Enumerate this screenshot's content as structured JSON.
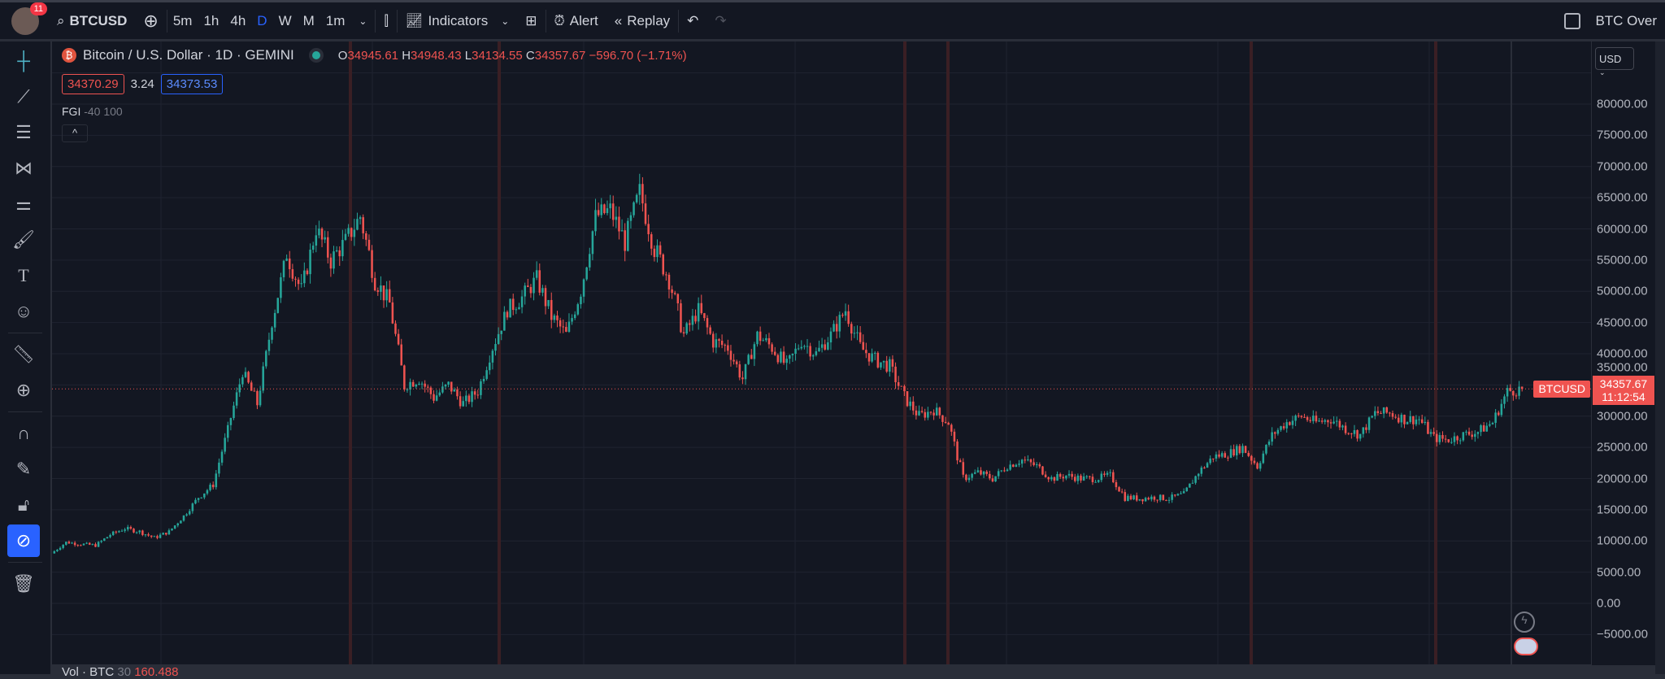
{
  "toolbar": {
    "notifications": "11",
    "symbol": "BTCUSD",
    "intervals": [
      "5m",
      "1h",
      "4h",
      "D",
      "W",
      "M",
      "1m"
    ],
    "active_interval": "D",
    "indicators": "Indicators",
    "alert": "Alert",
    "replay": "Replay",
    "right_label": "BTC Over"
  },
  "legend": {
    "title": "Bitcoin / U.S. Dollar · 1D · GEMINI",
    "o_label": "O",
    "o": "34945.61",
    "h_label": "H",
    "h": "34948.43",
    "l_label": "L",
    "l": "34134.55",
    "c_label": "C",
    "c": "34357.67",
    "change": "−596.70 (−1.71%)",
    "bid": "34370.29",
    "spread": "3.24",
    "ask": "34373.53",
    "indicator": "FGI",
    "indicator_params": "-40 100"
  },
  "axis": {
    "currency": "USD",
    "labels": [
      "80000.00",
      "75000.00",
      "70000.00",
      "65000.00",
      "60000.00",
      "55000.00",
      "50000.00",
      "45000.00",
      "40000.00",
      "35000.00",
      "30000.00",
      "25000.00",
      "20000.00",
      "15000.00",
      "10000.00",
      "5000.00",
      "0.00",
      "−5000.00"
    ],
    "price_symbol": "BTCUSD",
    "last_price": "34357.67",
    "countdown": "11:12:54"
  },
  "volume": {
    "label": "Vol · BTC",
    "length": "30",
    "value": "160.488"
  },
  "colors": {
    "up": "#26a69a",
    "down": "#ef5350",
    "background": "#131722",
    "accent": "#2962ff"
  },
  "chart_data": {
    "type": "candlestick",
    "symbol": "BTCUSD",
    "ylim": [
      -7000,
      85000
    ],
    "last": 34357.67,
    "approx_closes": [
      8000,
      9800,
      9500,
      9300,
      11000,
      12000,
      11500,
      10500,
      11500,
      14000,
      17000,
      19000,
      28000,
      37000,
      32000,
      45000,
      56000,
      50000,
      60000,
      55000,
      58000,
      62000,
      52000,
      48000,
      35000,
      36000,
      33000,
      35000,
      32000,
      34000,
      41000,
      47000,
      49000,
      52000,
      46000,
      43000,
      50000,
      62000,
      63000,
      58000,
      66000,
      57000,
      52000,
      43000,
      47000,
      42000,
      41000,
      36000,
      43000,
      41000,
      38000,
      42000,
      40000,
      43000,
      47000,
      41000,
      39000,
      38000,
      33000,
      30000,
      31000,
      29000,
      20000,
      21000,
      20000,
      22000,
      23000,
      22000,
      20000,
      20500,
      20000,
      20000,
      20500,
      17000,
      16800,
      17000,
      16800,
      17500,
      21000,
      23500,
      24000,
      25000,
      22000,
      27000,
      29000,
      30000,
      29000,
      29500,
      28000,
      27000,
      30500,
      30500,
      29500,
      29500,
      26500,
      26200,
      27000,
      27500,
      29000,
      34000,
      34357.67
    ]
  }
}
